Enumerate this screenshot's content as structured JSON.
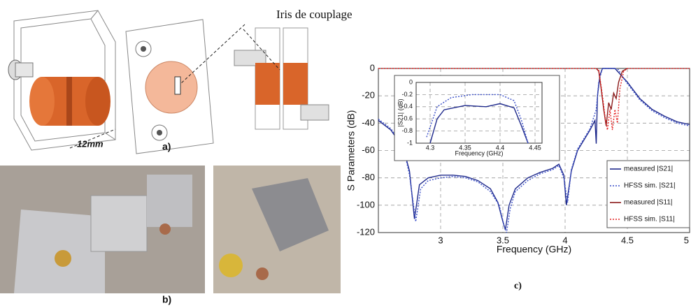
{
  "figure": {
    "labels": {
      "iris": "Iris de couplage",
      "dimension": "12mm",
      "a": "a)",
      "b": "b)",
      "c": "c)"
    }
  },
  "chart_data": [
    {
      "type": "line",
      "xlabel": "Frequency (GHz)",
      "ylabel": "S Parameters (dB)",
      "xlim": [
        2.5,
        5
      ],
      "ylim": [
        -120,
        0
      ],
      "xticks": [
        3,
        3.5,
        4,
        4.5,
        5
      ],
      "yticks": [
        0,
        -20,
        -40,
        -60,
        -80,
        -100,
        -120
      ],
      "grid": true,
      "legend": "lower right",
      "series": [
        {
          "name": "measured |S21|",
          "color": "#1f2a8c",
          "style": "solid",
          "x": [
            2.5,
            2.6,
            2.7,
            2.75,
            2.79,
            2.83,
            2.9,
            3.0,
            3.1,
            3.2,
            3.3,
            3.4,
            3.46,
            3.5,
            3.52,
            3.55,
            3.6,
            3.7,
            3.8,
            3.9,
            3.95,
            3.99,
            4.01,
            4.05,
            4.1,
            4.2,
            4.24,
            4.25,
            4.26,
            4.28,
            4.3,
            4.4,
            4.42,
            4.45,
            4.5,
            4.6,
            4.7,
            4.8,
            4.9,
            5.0
          ],
          "values": [
            -38,
            -45,
            -58,
            -75,
            -110,
            -85,
            -80,
            -78,
            -78,
            -79,
            -82,
            -88,
            -98,
            -112,
            -118,
            -100,
            -88,
            -80,
            -76,
            -73,
            -70,
            -78,
            -100,
            -75,
            -60,
            -45,
            -38,
            -55,
            -20,
            -5,
            0,
            0,
            -2,
            -5,
            -10,
            -22,
            -30,
            -35,
            -39,
            -41
          ]
        },
        {
          "name": "HFSS sim. |S21|",
          "color": "#3a4fc9",
          "style": "dotted",
          "x": [
            2.5,
            2.6,
            2.7,
            2.75,
            2.8,
            2.84,
            2.9,
            3.0,
            3.1,
            3.2,
            3.3,
            3.4,
            3.47,
            3.51,
            3.53,
            3.56,
            3.6,
            3.7,
            3.8,
            3.9,
            3.95,
            3.99,
            4.02,
            4.05,
            4.1,
            4.2,
            4.25,
            4.27,
            4.29,
            4.3,
            4.4,
            4.43,
            4.46,
            4.5,
            4.6,
            4.7,
            4.8,
            4.9,
            5.0
          ],
          "values": [
            -37,
            -44,
            -57,
            -78,
            -112,
            -88,
            -82,
            -80,
            -79,
            -80,
            -83,
            -90,
            -100,
            -115,
            -120,
            -102,
            -90,
            -82,
            -77,
            -74,
            -71,
            -80,
            -98,
            -74,
            -59,
            -44,
            -30,
            -10,
            -3,
            0,
            0,
            -1,
            -6,
            -11,
            -23,
            -31,
            -36,
            -40,
            -42
          ]
        },
        {
          "name": "measured |S11|",
          "color": "#8b1a1a",
          "style": "solid",
          "x": [
            4.25,
            4.27,
            4.29,
            4.31,
            4.33,
            4.35,
            4.37,
            4.39,
            4.41,
            4.43,
            4.46,
            4.5
          ],
          "values": [
            0,
            -2,
            -15,
            -30,
            -42,
            -25,
            -30,
            -18,
            -22,
            -10,
            -2,
            0
          ]
        },
        {
          "name": "HFSS sim. |S11|",
          "color": "#e32020",
          "style": "dotted",
          "x": [
            2.5,
            4.25,
            4.27,
            4.3,
            4.32,
            4.34,
            4.36,
            4.38,
            4.4,
            4.42,
            4.44,
            4.47,
            4.5,
            5.0
          ],
          "values": [
            0,
            0,
            -1,
            -20,
            -35,
            -45,
            -30,
            -45,
            -30,
            -40,
            -15,
            -2,
            0,
            0
          ]
        }
      ]
    },
    {
      "type": "line",
      "xlabel": "Frequency (GHz)",
      "ylabel": "|S21| (dB)",
      "xlim": [
        4.28,
        4.46
      ],
      "ylim": [
        -1,
        0
      ],
      "xticks": [
        4.3,
        4.35,
        4.4,
        4.45
      ],
      "yticks": [
        0,
        -0.2,
        -0.4,
        -0.6,
        -0.8,
        -1
      ],
      "grid": true,
      "series": [
        {
          "color": "#1f2a8c",
          "style": "solid",
          "x": [
            4.3,
            4.31,
            4.32,
            4.35,
            4.38,
            4.4,
            4.42,
            4.43,
            4.44
          ],
          "values": [
            -1,
            -0.6,
            -0.45,
            -0.38,
            -0.4,
            -0.35,
            -0.42,
            -0.7,
            -1
          ]
        },
        {
          "color": "#3a4fc9",
          "style": "dotted",
          "x": [
            4.295,
            4.31,
            4.33,
            4.36,
            4.4,
            4.42,
            4.43,
            4.44
          ],
          "values": [
            -0.9,
            -0.4,
            -0.25,
            -0.2,
            -0.2,
            -0.3,
            -0.6,
            -1
          ]
        }
      ]
    }
  ]
}
